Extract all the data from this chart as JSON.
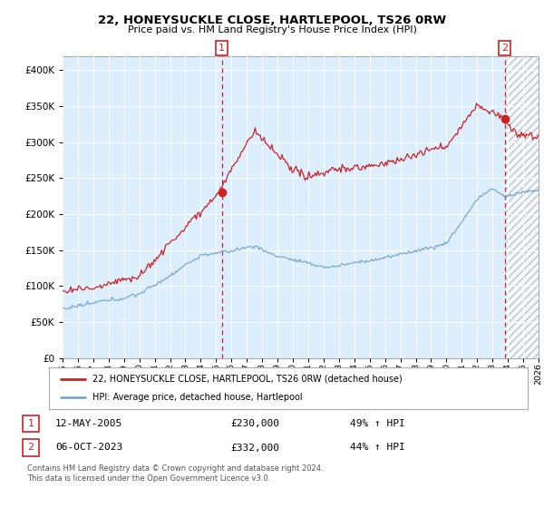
{
  "title": "22, HONEYSUCKLE CLOSE, HARTLEPOOL, TS26 0RW",
  "subtitle": "Price paid vs. HM Land Registry's House Price Index (HPI)",
  "sale1_label": "12-MAY-2005",
  "sale1_price": 230000,
  "sale1_hpi_pct": "49% ↑ HPI",
  "sale1_t": 2005.375,
  "sale2_label": "06-OCT-2023",
  "sale2_price": 332000,
  "sale2_hpi_pct": "44% ↑ HPI",
  "sale2_t": 2023.792,
  "legend_property": "22, HONEYSUCKLE CLOSE, HARTLEPOOL, TS26 0RW (detached house)",
  "legend_hpi": "HPI: Average price, detached house, Hartlepool",
  "footnote": "Contains HM Land Registry data © Crown copyright and database right 2024.\nThis data is licensed under the Open Government Licence v3.0.",
  "hpi_color": "#7aaacf",
  "property_color": "#cc2222",
  "marker_color": "#cc2222",
  "bg_color": "#ddeeff",
  "chart_bg": "#ddeeff",
  "grid_color": "#aabbcc",
  "hatch_color": "#bbbbbb",
  "ylim_min": 0,
  "ylim_max": 420000,
  "xlim_min": 1995.0,
  "xlim_max": 2026.0
}
